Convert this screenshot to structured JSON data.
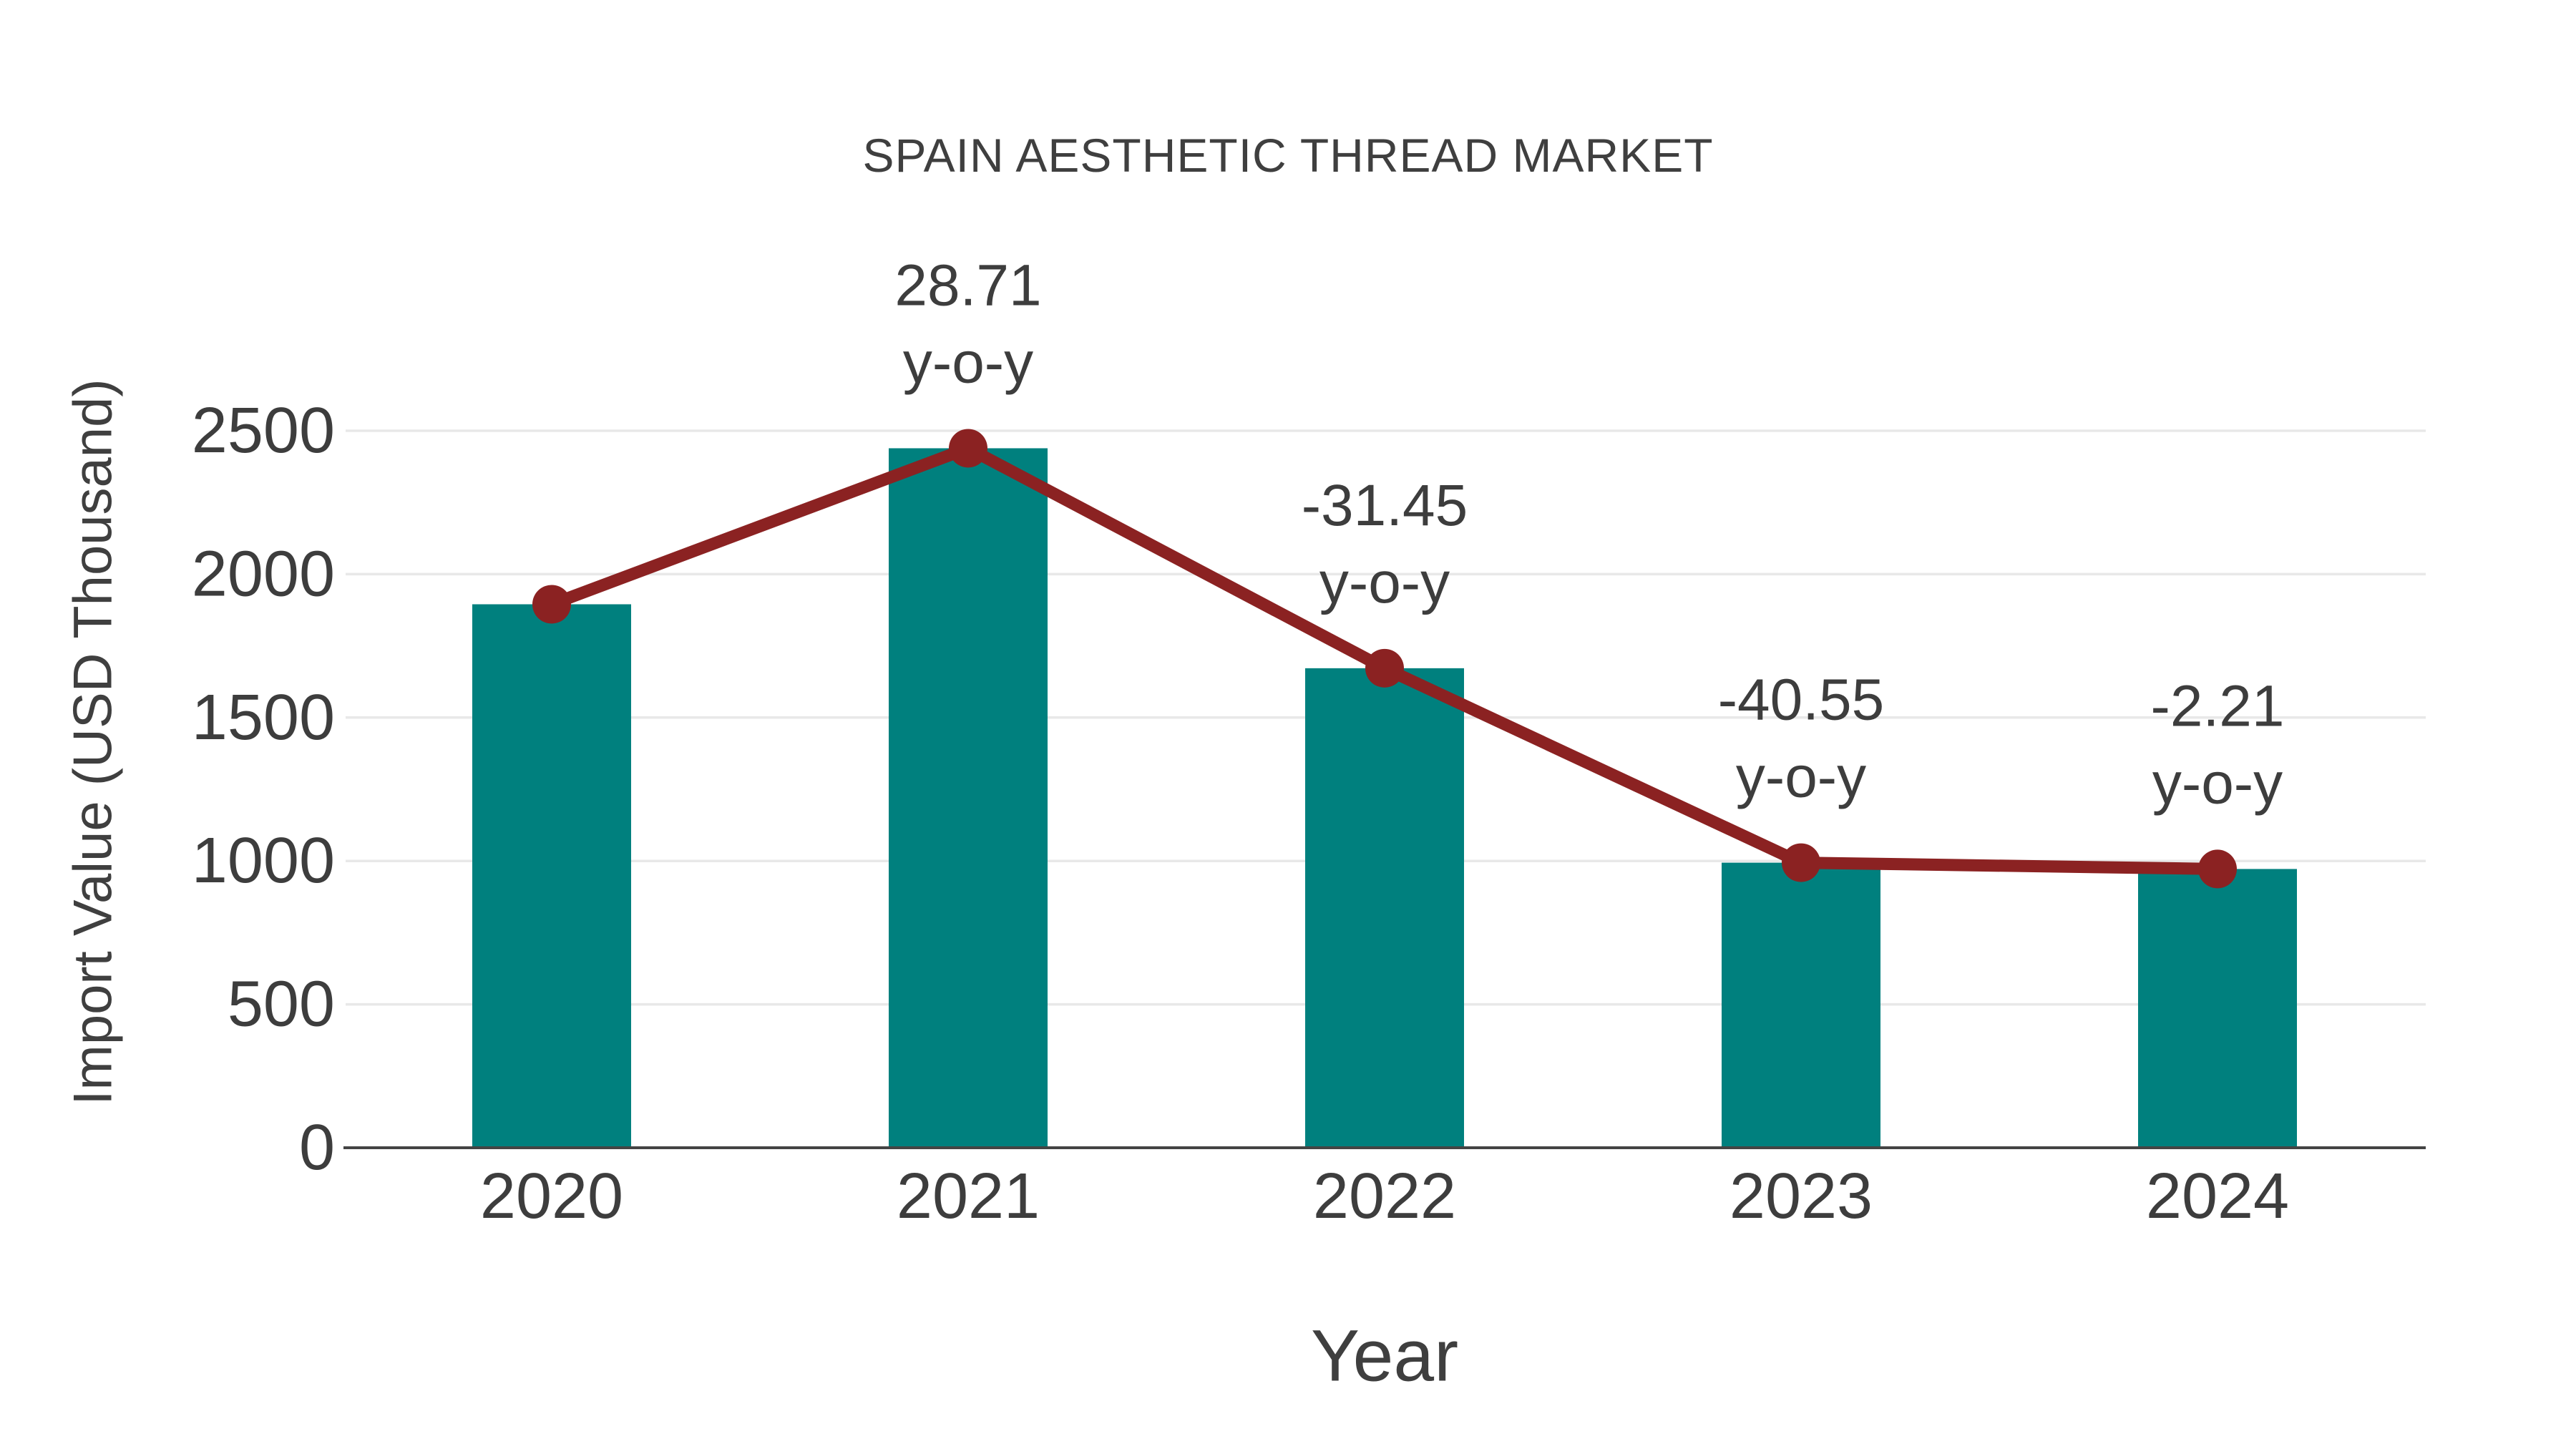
{
  "page": {
    "background": "#ffffff"
  },
  "chart_data": {
    "type": "combo_bar_line",
    "title": "SPAIN AESTHETIC THREAD MARKET",
    "xlabel": "Year",
    "ylabel": "Import Value (USD Thousand)",
    "categories": [
      "2020",
      "2021",
      "2022",
      "2023",
      "2024"
    ],
    "series": [
      {
        "name": "Import Value (USD Thousand)",
        "type": "bar",
        "values": [
          1895,
          2439,
          1672,
          994,
          972
        ]
      },
      {
        "name": "y-o-y trend line (plotted on bar tops)",
        "type": "line",
        "values": [
          1895,
          2439,
          1672,
          994,
          972
        ],
        "yoy_percent": [
          null,
          28.71,
          -31.45,
          -40.55,
          -2.21
        ]
      }
    ],
    "annotations": [
      {
        "category": "2021",
        "line1": "28.71",
        "line2": "y-o-y"
      },
      {
        "category": "2022",
        "line1": "-31.45",
        "line2": "y-o-y"
      },
      {
        "category": "2023",
        "line1": "-40.55",
        "line2": "y-o-y"
      },
      {
        "category": "2024",
        "line1": "-2.21",
        "line2": "y-o-y"
      }
    ],
    "ylim": [
      0,
      2500
    ],
    "yticks": [
      0,
      500,
      1000,
      1500,
      2000,
      2500
    ],
    "grid": "horizontal-only",
    "legend": false,
    "colors": {
      "bar": "#00807e",
      "line": "#8b2222",
      "marker": "#8b2222",
      "text": "#3d3d3d",
      "title": "#3f3f3f",
      "grid": "#e8e8e8",
      "axis": "#444444",
      "background": "#ffffff"
    }
  }
}
